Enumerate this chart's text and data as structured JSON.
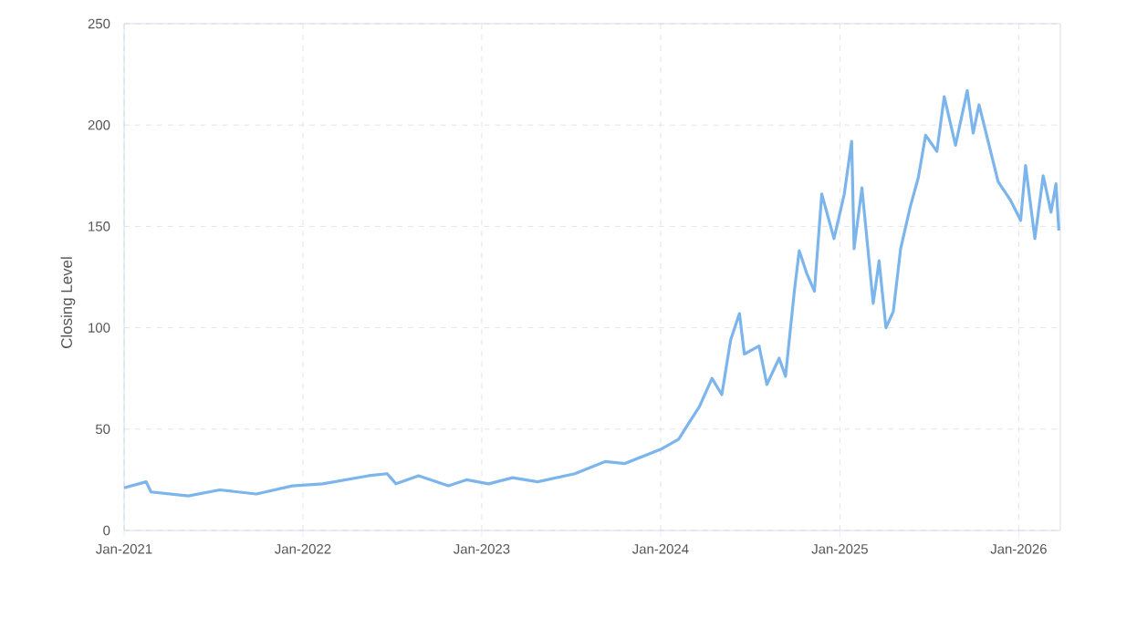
{
  "chart_data": {
    "type": "line",
    "ylabel": "Closing Level",
    "x": [
      "2021-01-01",
      "2021-02-15",
      "2021-02-25",
      "2021-05-12",
      "2021-07-15",
      "2021-09-28",
      "2021-12-10",
      "2022-02-10",
      "2022-05-15",
      "2022-06-22",
      "2022-07-10",
      "2022-08-25",
      "2022-10-25",
      "2022-12-01",
      "2023-01-15",
      "2023-03-05",
      "2023-04-25",
      "2023-07-10",
      "2023-09-10",
      "2023-10-20",
      "2024-01-01",
      "2024-02-07",
      "2024-02-25",
      "2024-03-20",
      "2024-04-15",
      "2024-05-05",
      "2024-05-23",
      "2024-06-10",
      "2024-06-20",
      "2024-07-20",
      "2024-08-05",
      "2024-08-30",
      "2024-09-12",
      "2024-09-30",
      "2024-10-10",
      "2024-10-25",
      "2024-11-10",
      "2024-11-25",
      "2024-12-20",
      "2025-01-10",
      "2025-01-25",
      "2025-01-30",
      "2025-02-15",
      "2025-03-10",
      "2025-03-22",
      "2025-04-05",
      "2025-04-20",
      "2025-05-05",
      "2025-05-25",
      "2025-06-10",
      "2025-06-25",
      "2025-07-18",
      "2025-08-02",
      "2025-08-25",
      "2025-09-18",
      "2025-09-30",
      "2025-10-12",
      "2025-11-20",
      "2025-12-15",
      "2026-01-05",
      "2026-01-15",
      "2026-02-03",
      "2026-02-20",
      "2026-03-08",
      "2026-03-18",
      "2026-03-24"
    ],
    "series": [
      {
        "color": "#7cb5ec",
        "values": [
          21,
          24,
          19,
          17,
          20,
          18,
          22,
          23,
          27,
          28,
          23,
          27,
          22,
          25,
          23,
          26,
          24,
          28,
          34,
          33,
          40,
          45,
          52,
          61,
          75,
          67,
          94,
          107,
          87,
          91,
          72,
          85,
          76,
          118,
          138,
          127,
          118,
          166,
          144,
          166,
          192,
          139,
          169,
          112,
          133,
          100,
          108,
          139,
          160,
          174,
          195,
          187,
          214,
          190,
          217,
          196,
          210,
          172,
          163,
          153,
          180,
          144,
          175,
          157,
          171,
          148
        ]
      }
    ],
    "xlim": [
      "2021-01-01",
      "2026-03-27"
    ],
    "xticks": [
      {
        "value": "2021-01-01",
        "label": "Jan-2021"
      },
      {
        "value": "2022-01-01",
        "label": "Jan-2022"
      },
      {
        "value": "2023-01-01",
        "label": "Jan-2023"
      },
      {
        "value": "2024-01-01",
        "label": "Jan-2024"
      },
      {
        "value": "2025-01-01",
        "label": "Jan-2025"
      },
      {
        "value": "2026-01-01",
        "label": "Jan-2026"
      }
    ],
    "ylim": [
      0,
      250
    ],
    "yticks": [
      0,
      50,
      100,
      150,
      200,
      250
    ],
    "grid": true
  }
}
